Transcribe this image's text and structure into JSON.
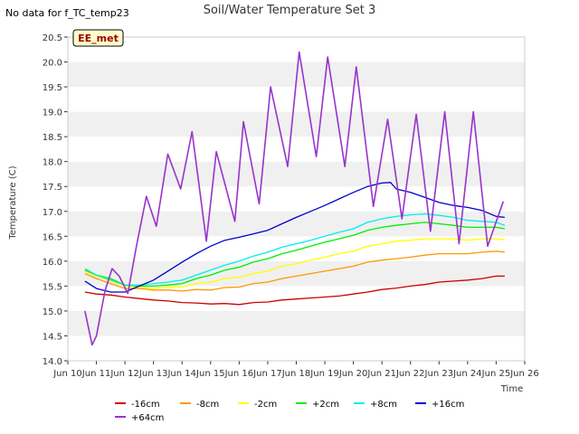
{
  "header": {
    "no_data_note": "No data for f_TC_temp23"
  },
  "chart_data": {
    "type": "line",
    "title": "Soil/Water Temperature Set 3",
    "xlabel": "Time",
    "ylabel": "Temperature (C)",
    "annotation": "EE_met",
    "xlim": [
      10.0,
      26.0
    ],
    "ylim": [
      14.0,
      20.5
    ],
    "x_ticks": [
      {
        "v": 10,
        "label": "Jun 10"
      },
      {
        "v": 11,
        "label": "Jun 11"
      },
      {
        "v": 12,
        "label": "Jun 12"
      },
      {
        "v": 13,
        "label": "Jun 13"
      },
      {
        "v": 14,
        "label": "Jun 14"
      },
      {
        "v": 15,
        "label": "Jun 15"
      },
      {
        "v": 16,
        "label": "Jun 16"
      },
      {
        "v": 17,
        "label": "Jun 17"
      },
      {
        "v": 18,
        "label": "Jun 18"
      },
      {
        "v": 19,
        "label": "Jun 19"
      },
      {
        "v": 20,
        "label": "Jun 20"
      },
      {
        "v": 21,
        "label": "Jun 21"
      },
      {
        "v": 22,
        "label": "Jun 22"
      },
      {
        "v": 23,
        "label": "Jun 23"
      },
      {
        "v": 24,
        "label": "Jun 24"
      },
      {
        "v": 25,
        "label": "Jun 25"
      },
      {
        "v": 26,
        "label": "Jun 26"
      }
    ],
    "y_ticks": [
      {
        "v": 14.0,
        "label": "14.0"
      },
      {
        "v": 14.5,
        "label": "14.5"
      },
      {
        "v": 15.0,
        "label": "15.0"
      },
      {
        "v": 15.5,
        "label": "15.5"
      },
      {
        "v": 16.0,
        "label": "16.0"
      },
      {
        "v": 16.5,
        "label": "16.5"
      },
      {
        "v": 17.0,
        "label": "17.0"
      },
      {
        "v": 17.5,
        "label": "17.5"
      },
      {
        "v": 18.0,
        "label": "18.0"
      },
      {
        "v": 18.5,
        "label": "18.5"
      },
      {
        "v": 19.0,
        "label": "19.0"
      },
      {
        "v": 19.5,
        "label": "19.5"
      },
      {
        "v": 20.0,
        "label": "20.0"
      },
      {
        "v": 20.5,
        "label": "20.5"
      }
    ],
    "grid": "horizontal bands",
    "legend_position": "bottom",
    "series": [
      {
        "name": "-16cm",
        "color": "#cc0000",
        "x": [
          10.6,
          11.0,
          11.5,
          12.0,
          12.5,
          13.0,
          13.5,
          14.0,
          14.5,
          15.0,
          15.5,
          16.0,
          16.5,
          17.0,
          17.5,
          18.0,
          18.5,
          19.0,
          19.5,
          20.0,
          20.5,
          21.0,
          21.5,
          22.0,
          22.5,
          23.0,
          23.5,
          24.0,
          24.5,
          25.0,
          25.3
        ],
        "y": [
          15.38,
          15.34,
          15.32,
          15.28,
          15.25,
          15.22,
          15.2,
          15.17,
          15.16,
          15.14,
          15.15,
          15.13,
          15.17,
          15.18,
          15.22,
          15.24,
          15.26,
          15.28,
          15.3,
          15.34,
          15.38,
          15.43,
          15.46,
          15.5,
          15.53,
          15.58,
          15.6,
          15.62,
          15.65,
          15.7,
          15.7
        ]
      },
      {
        "name": "-8cm",
        "color": "#ff9900",
        "x": [
          10.6,
          11.0,
          11.5,
          12.0,
          12.5,
          13.0,
          13.5,
          14.0,
          14.5,
          15.0,
          15.5,
          16.0,
          16.5,
          17.0,
          17.5,
          18.0,
          18.5,
          19.0,
          19.5,
          20.0,
          20.5,
          21.0,
          21.5,
          22.0,
          22.5,
          23.0,
          23.5,
          24.0,
          24.5,
          25.0,
          25.3
        ],
        "y": [
          15.75,
          15.65,
          15.55,
          15.45,
          15.45,
          15.42,
          15.42,
          15.4,
          15.43,
          15.42,
          15.47,
          15.48,
          15.55,
          15.58,
          15.65,
          15.7,
          15.75,
          15.8,
          15.85,
          15.9,
          15.98,
          16.02,
          16.05,
          16.08,
          16.12,
          16.15,
          16.15,
          16.15,
          16.18,
          16.2,
          16.18
        ]
      },
      {
        "name": "-2cm",
        "color": "#ffff00",
        "x": [
          10.6,
          11.0,
          11.5,
          12.0,
          12.5,
          13.0,
          13.5,
          14.0,
          14.5,
          15.0,
          15.5,
          16.0,
          16.5,
          17.0,
          17.5,
          18.0,
          18.5,
          19.0,
          19.5,
          20.0,
          20.5,
          21.0,
          21.5,
          22.0,
          22.5,
          23.0,
          23.5,
          24.0,
          24.5,
          25.0,
          25.3
        ],
        "y": [
          15.8,
          15.7,
          15.6,
          15.5,
          15.48,
          15.45,
          15.48,
          15.48,
          15.55,
          15.58,
          15.65,
          15.68,
          15.75,
          15.8,
          15.9,
          15.95,
          16.02,
          16.08,
          16.15,
          16.2,
          16.3,
          16.35,
          16.4,
          16.42,
          16.45,
          16.45,
          16.45,
          16.42,
          16.45,
          16.45,
          16.43
        ]
      },
      {
        "name": "+2cm",
        "color": "#00ee00",
        "x": [
          10.6,
          11.0,
          11.5,
          12.0,
          12.5,
          13.0,
          13.5,
          14.0,
          14.5,
          15.0,
          15.5,
          16.0,
          16.5,
          17.0,
          17.5,
          18.0,
          18.5,
          19.0,
          19.5,
          20.0,
          20.5,
          21.0,
          21.5,
          22.0,
          22.5,
          23.0,
          23.5,
          24.0,
          24.5,
          25.0,
          25.3
        ],
        "y": [
          15.82,
          15.72,
          15.65,
          15.52,
          15.5,
          15.5,
          15.52,
          15.55,
          15.65,
          15.72,
          15.82,
          15.88,
          15.98,
          16.05,
          16.15,
          16.22,
          16.3,
          16.38,
          16.45,
          16.52,
          16.62,
          16.68,
          16.72,
          16.75,
          16.78,
          16.75,
          16.72,
          16.68,
          16.68,
          16.68,
          16.65
        ]
      },
      {
        "name": "+8cm",
        "color": "#00eeee",
        "x": [
          10.6,
          11.0,
          11.5,
          12.0,
          12.5,
          13.0,
          13.5,
          14.0,
          14.5,
          15.0,
          15.5,
          16.0,
          16.5,
          17.0,
          17.5,
          18.0,
          18.5,
          19.0,
          19.5,
          20.0,
          20.5,
          21.0,
          21.5,
          22.0,
          22.5,
          23.0,
          23.5,
          24.0,
          24.5,
          25.0,
          25.3
        ],
        "y": [
          15.85,
          15.72,
          15.62,
          15.52,
          15.52,
          15.55,
          15.58,
          15.62,
          15.72,
          15.82,
          15.92,
          16.0,
          16.1,
          16.18,
          16.28,
          16.35,
          16.42,
          16.5,
          16.58,
          16.65,
          16.78,
          16.85,
          16.9,
          16.93,
          16.95,
          16.92,
          16.88,
          16.82,
          16.8,
          16.78,
          16.72
        ]
      },
      {
        "name": "+16cm",
        "color": "#0000cc",
        "x": [
          10.6,
          11.0,
          11.5,
          12.0,
          12.5,
          13.0,
          13.5,
          14.0,
          14.5,
          15.0,
          15.5,
          16.0,
          16.5,
          17.0,
          17.5,
          18.0,
          18.5,
          19.0,
          19.5,
          20.0,
          20.5,
          21.0,
          21.3,
          21.5,
          22.0,
          22.5,
          23.0,
          23.5,
          24.0,
          24.5,
          25.0,
          25.3
        ],
        "y": [
          15.6,
          15.45,
          15.38,
          15.38,
          15.5,
          15.62,
          15.8,
          15.98,
          16.15,
          16.3,
          16.42,
          16.48,
          16.55,
          16.62,
          16.75,
          16.88,
          17.0,
          17.12,
          17.25,
          17.38,
          17.5,
          17.57,
          17.58,
          17.45,
          17.38,
          17.28,
          17.18,
          17.12,
          17.08,
          17.02,
          16.9,
          16.88
        ]
      },
      {
        "name": "+64cm",
        "color": "#9933cc",
        "x": [
          10.6,
          10.85,
          11.0,
          11.3,
          11.55,
          11.8,
          12.1,
          12.4,
          12.75,
          13.1,
          13.5,
          13.95,
          14.35,
          14.85,
          15.2,
          15.85,
          16.15,
          16.7,
          17.1,
          17.7,
          18.1,
          18.7,
          19.1,
          19.7,
          20.1,
          20.7,
          21.2,
          21.7,
          22.2,
          22.7,
          23.2,
          23.7,
          24.2,
          24.7,
          25.25
        ],
        "y": [
          15.0,
          14.32,
          14.5,
          15.4,
          15.85,
          15.7,
          15.35,
          16.3,
          17.3,
          16.7,
          18.15,
          17.45,
          18.6,
          16.4,
          18.2,
          16.8,
          18.8,
          17.15,
          19.5,
          17.9,
          20.2,
          18.1,
          20.1,
          17.9,
          19.9,
          17.1,
          18.85,
          16.85,
          18.95,
          16.6,
          19.0,
          16.35,
          19.0,
          16.3,
          17.2
        ]
      }
    ]
  }
}
